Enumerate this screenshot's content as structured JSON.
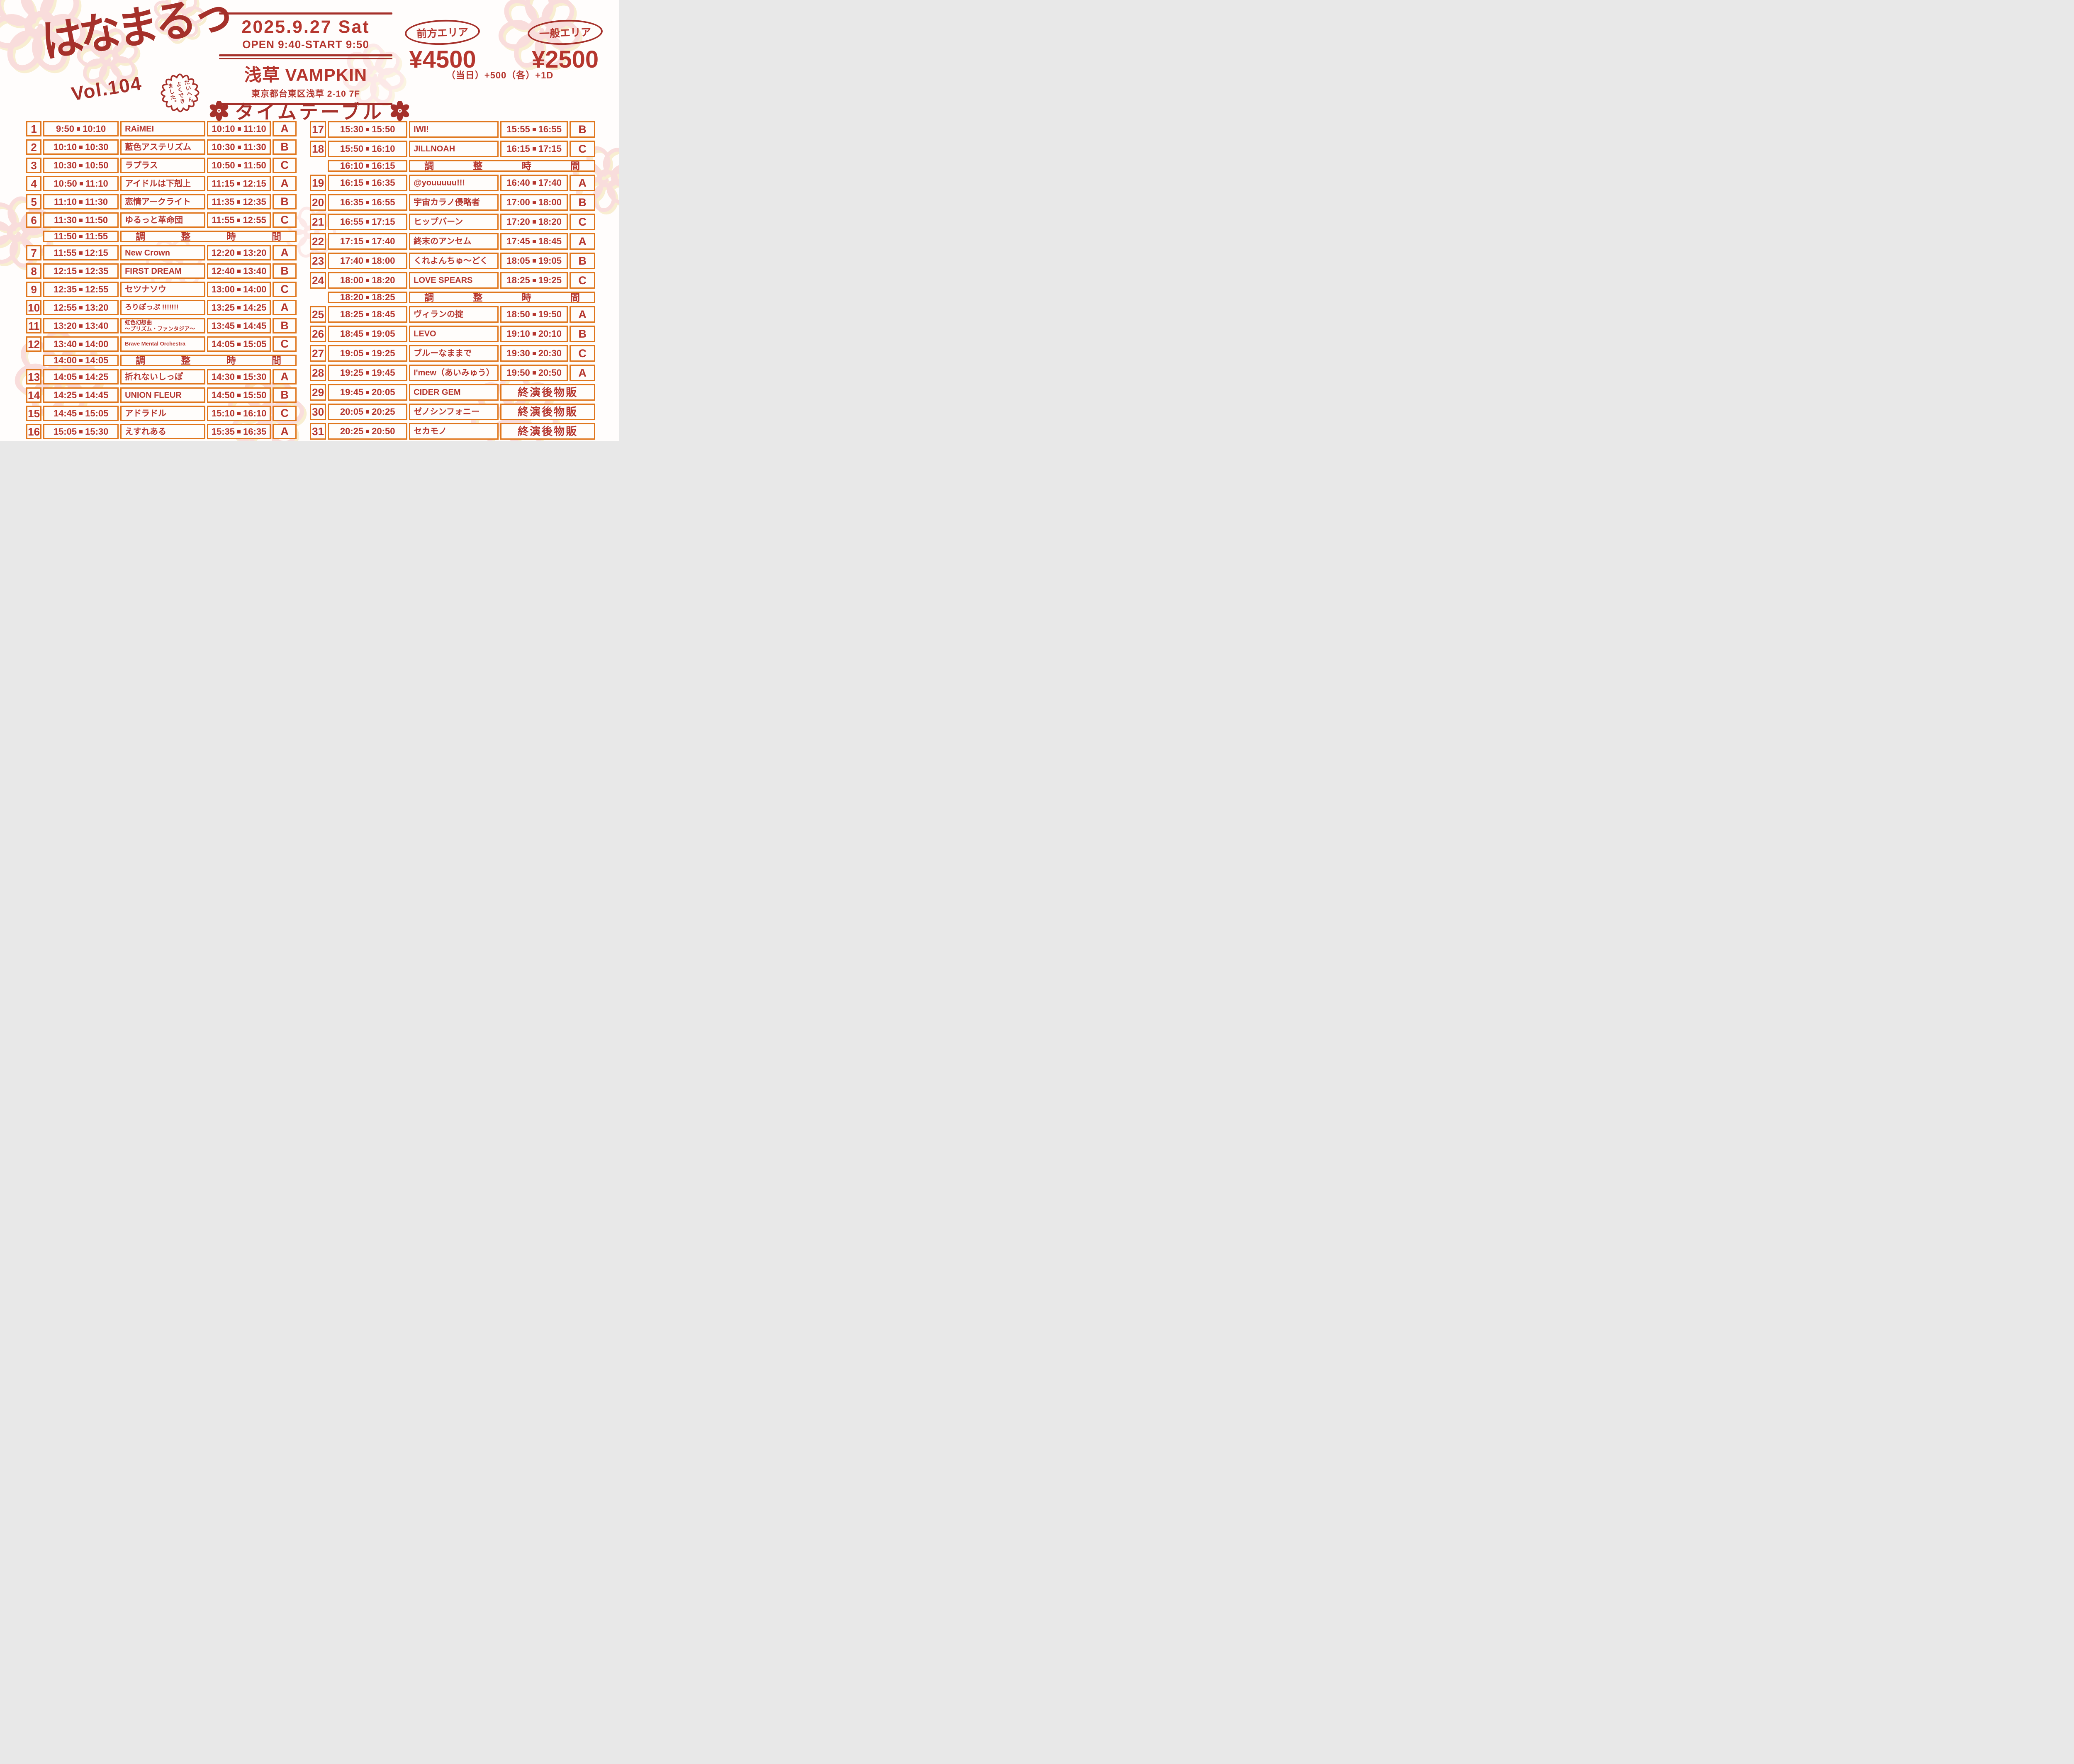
{
  "event": {
    "logo_title": "はなまるっ",
    "logo_vol": "Vol.104",
    "badge_text": "たいへん\nよくでき\nました。",
    "date": "2025.9.27 Sat",
    "open_start": "OPEN 9:40-START 9:50",
    "venue": "浅草 VAMPKIN",
    "address": "東京都台東区浅草 2-10 7F",
    "timetable_title": "タイムテーブル",
    "pricing": {
      "front_area_label": "前方エリア",
      "front_area_price": "¥4500",
      "general_area_label": "一般エリア",
      "general_area_price": "¥2500",
      "note": "（当日）+500（各）+1D"
    }
  },
  "labels": {
    "adjustment": "調整時間",
    "post_show_sales": "終演後物販"
  },
  "left_rows": [
    {
      "type": "act",
      "no": "1",
      "time": "9:50-10:10",
      "name": "RAiMEI",
      "tokuten": "10:10-11:10",
      "area": "A"
    },
    {
      "type": "act",
      "no": "2",
      "time": "10:10-10:30",
      "name": "藍色アステリズム",
      "tokuten": "10:30-11:30",
      "area": "B"
    },
    {
      "type": "act",
      "no": "3",
      "time": "10:30-10:50",
      "name": "ラプラス",
      "tokuten": "10:50-11:50",
      "area": "C"
    },
    {
      "type": "act",
      "no": "4",
      "time": "10:50-11:10",
      "name": "アイドルは下剋上",
      "tokuten": "11:15-12:15",
      "area": "A"
    },
    {
      "type": "act",
      "no": "5",
      "time": "11:10-11:30",
      "name": "恋情アークライト",
      "tokuten": "11:35-12:35",
      "area": "B"
    },
    {
      "type": "act",
      "no": "6",
      "time": "11:30-11:50",
      "name": "ゆるっと革命団",
      "tokuten": "11:55-12:55",
      "area": "C"
    },
    {
      "type": "adjust",
      "time": "11:50-11:55"
    },
    {
      "type": "act",
      "no": "7",
      "time": "11:55-12:15",
      "name": "New Crown",
      "tokuten": "12:20-13:20",
      "area": "A"
    },
    {
      "type": "act",
      "no": "8",
      "time": "12:15-12:35",
      "name": "FIRST DREAM",
      "tokuten": "12:40-13:40",
      "area": "B"
    },
    {
      "type": "act",
      "no": "9",
      "time": "12:35-12:55",
      "name": "セツナソウ",
      "tokuten": "13:00-14:00",
      "area": "C"
    },
    {
      "type": "act",
      "no": "10",
      "time": "12:55-13:20",
      "name": "ろりぽっぷ !!!!!!!",
      "tokuten": "13:25-14:25",
      "area": "A"
    },
    {
      "type": "act",
      "no": "11",
      "time": "13:20-13:40",
      "name": "虹色幻想曲\n〜プリズム・ファンタジア〜",
      "tokuten": "13:45-14:45",
      "area": "B"
    },
    {
      "type": "act",
      "no": "12",
      "time": "13:40-14:00",
      "name": "Brave Mental Orchestra",
      "tokuten": "14:05-15:05",
      "area": "C"
    },
    {
      "type": "adjust",
      "time": "14:00-14:05"
    },
    {
      "type": "act",
      "no": "13",
      "time": "14:05-14:25",
      "name": "折れないしっぽ",
      "tokuten": "14:30-15:30",
      "area": "A"
    },
    {
      "type": "act",
      "no": "14",
      "time": "14:25-14:45",
      "name": "UNION FLEUR",
      "tokuten": "14:50-15:50",
      "area": "B"
    },
    {
      "type": "act",
      "no": "15",
      "time": "14:45-15:05",
      "name": "アドラドル",
      "tokuten": "15:10-16:10",
      "area": "C"
    },
    {
      "type": "act",
      "no": "16",
      "time": "15:05-15:30",
      "name": "えすれある",
      "tokuten": "15:35-16:35",
      "area": "A"
    }
  ],
  "right_rows": [
    {
      "type": "act",
      "no": "17",
      "time": "15:30-15:50",
      "name": "IWI!",
      "tokuten": "15:55-16:55",
      "area": "B"
    },
    {
      "type": "act",
      "no": "18",
      "time": "15:50-16:10",
      "name": "JILLNOAH",
      "tokuten": "16:15-17:15",
      "area": "C"
    },
    {
      "type": "adjust",
      "time": "16:10-16:15"
    },
    {
      "type": "act",
      "no": "19",
      "time": "16:15-16:35",
      "name": "@youuuuu!!!",
      "tokuten": "16:40-17:40",
      "area": "A"
    },
    {
      "type": "act",
      "no": "20",
      "time": "16:35-16:55",
      "name": "宇宙カラノ侵略者",
      "tokuten": "17:00-18:00",
      "area": "B"
    },
    {
      "type": "act",
      "no": "21",
      "time": "16:55-17:15",
      "name": "ヒップバーン",
      "tokuten": "17:20-18:20",
      "area": "C"
    },
    {
      "type": "act",
      "no": "22",
      "time": "17:15-17:40",
      "name": "終末のアンセム",
      "tokuten": "17:45-18:45",
      "area": "A"
    },
    {
      "type": "act",
      "no": "23",
      "time": "17:40-18:00",
      "name": "くれよんちゅ〜どく",
      "tokuten": "18:05-19:05",
      "area": "B"
    },
    {
      "type": "act",
      "no": "24",
      "time": "18:00-18:20",
      "name": "LOVE SPEARS",
      "tokuten": "18:25-19:25",
      "area": "C"
    },
    {
      "type": "adjust",
      "time": "18:20-18:25"
    },
    {
      "type": "act",
      "no": "25",
      "time": "18:25-18:45",
      "name": "ヴィランの掟",
      "tokuten": "18:50-19:50",
      "area": "A"
    },
    {
      "type": "act",
      "no": "26",
      "time": "18:45-19:05",
      "name": "LEVO",
      "tokuten": "19:10-20:10",
      "area": "B"
    },
    {
      "type": "act",
      "no": "27",
      "time": "19:05-19:25",
      "name": "ブルーなままで",
      "tokuten": "19:30-20:30",
      "area": "C"
    },
    {
      "type": "act",
      "no": "28",
      "time": "19:25-19:45",
      "name": "I'mew（あいみゅう）",
      "tokuten": "19:50-20:50",
      "area": "A"
    },
    {
      "type": "goods",
      "no": "29",
      "time": "19:45-20:05",
      "name": "CIDER GEM"
    },
    {
      "type": "goods",
      "no": "30",
      "time": "20:05-20:25",
      "name": "ゼノシンフォニー"
    },
    {
      "type": "goods",
      "no": "31",
      "time": "20:25-20:50",
      "name": "セカモノ"
    }
  ]
}
